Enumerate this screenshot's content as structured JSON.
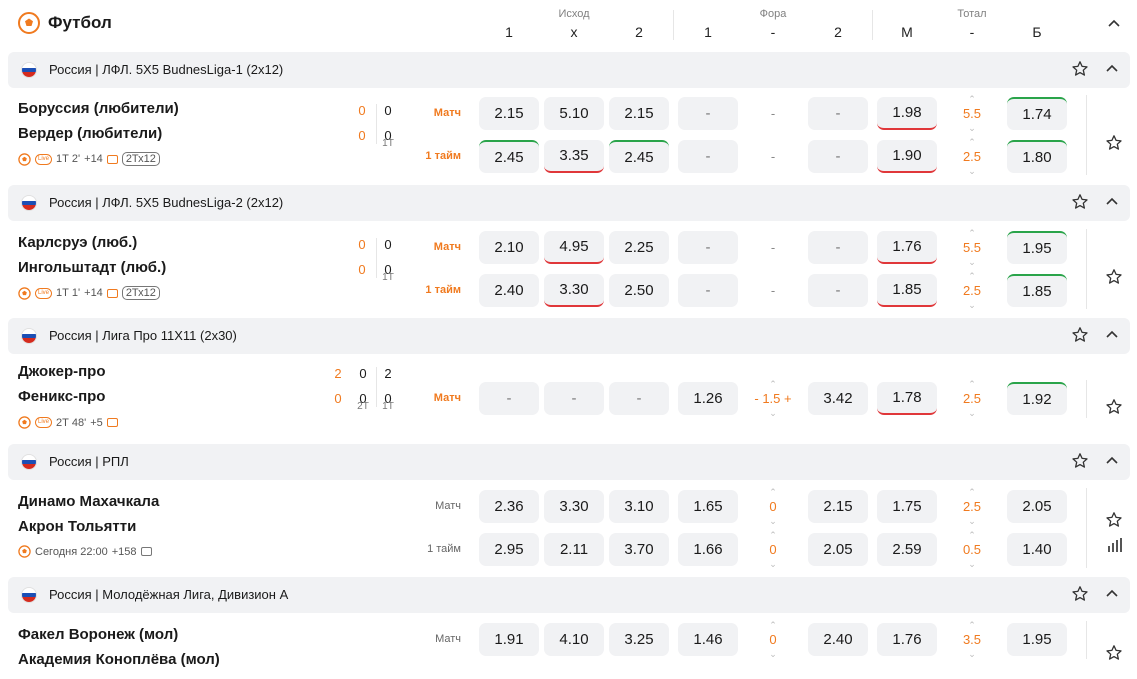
{
  "header": {
    "title": "Футбол",
    "groups": [
      "Исход",
      "Фора",
      "Тотал"
    ],
    "columns": [
      "1",
      "x",
      "2",
      "1",
      "-",
      "2",
      "М",
      "-",
      "Б"
    ]
  },
  "leagues": [
    {
      "name": "Россия | ЛФЛ. 5Х5 BudnesLiga-1 (2х12)",
      "match": {
        "team1": "Боруссия (любители)",
        "team2": "Вердер (любители)",
        "score1": [
          "0",
          "0"
        ],
        "score2": [
          "0",
          "0"
        ],
        "periods": [
          "1Т"
        ],
        "time": "1Т 2'",
        "more": "+14",
        "format": "2Тх12",
        "rows": [
          {
            "label": "Матч",
            "odds": [
              "2.15",
              "5.10",
              "2.15",
              "-",
              "-",
              "-",
              "1.98",
              "5.5",
              "1.74"
            ]
          },
          {
            "label": "1 тайм",
            "odds": [
              "2.45",
              "3.35",
              "2.45",
              "-",
              "-",
              "-",
              "1.90",
              "2.5",
              "1.80"
            ]
          }
        ]
      }
    },
    {
      "name": "Россия | ЛФЛ. 5Х5 BudnesLiga-2 (2х12)",
      "match": {
        "team1": "Карлсруэ (люб.)",
        "team2": "Ингольштадт (люб.)",
        "score1": [
          "0",
          "0"
        ],
        "score2": [
          "0",
          "0"
        ],
        "periods": [
          "1Т"
        ],
        "time": "1Т 1'",
        "more": "+14",
        "format": "2Тх12",
        "rows": [
          {
            "label": "Матч",
            "odds": [
              "2.10",
              "4.95",
              "2.25",
              "-",
              "-",
              "-",
              "1.76",
              "5.5",
              "1.95"
            ]
          },
          {
            "label": "1 тайм",
            "odds": [
              "2.40",
              "3.30",
              "2.50",
              "-",
              "-",
              "-",
              "1.85",
              "2.5",
              "1.85"
            ]
          }
        ]
      }
    },
    {
      "name": "Россия | Лига Про 11Х11 (2х30)",
      "match": {
        "team1": "Джокер-про",
        "team2": "Феникс-про",
        "score1": [
          "2",
          "0",
          "2"
        ],
        "score2": [
          "0",
          "0",
          "0"
        ],
        "periods": [
          "2Т",
          "1Т"
        ],
        "time": "2Т 48'",
        "more": "+5",
        "rows": [
          {
            "label": "Матч",
            "odds": [
              "-",
              "-",
              "-",
              "1.26",
              "- 1.5 +",
              "3.42",
              "1.78",
              "2.5",
              "1.92"
            ]
          }
        ]
      }
    },
    {
      "name": "Россия | РПЛ",
      "match": {
        "team1": "Динамо Махачкала",
        "team2": "Акрон Тольятти",
        "time": "Сегодня 22:00",
        "more": "+158",
        "rows": [
          {
            "label": "Матч",
            "odds": [
              "2.36",
              "3.30",
              "3.10",
              "1.65",
              "0",
              "2.15",
              "1.75",
              "2.5",
              "2.05"
            ]
          },
          {
            "label": "1 тайм",
            "odds": [
              "2.95",
              "2.11",
              "3.70",
              "1.66",
              "0",
              "2.05",
              "2.59",
              "0.5",
              "1.40"
            ]
          }
        ]
      }
    },
    {
      "name": "Россия | Молодёжная Лига, Дивизион А",
      "match": {
        "team1": "Факел Воронеж (мол)",
        "team2": "Академия Коноплёва (мол)",
        "rows": [
          {
            "label": "Матч",
            "odds": [
              "1.91",
              "4.10",
              "3.25",
              "1.46",
              "0",
              "2.40",
              "1.76",
              "3.5",
              "1.95"
            ]
          }
        ]
      }
    }
  ],
  "colors": {
    "accent": "#f07a1f",
    "up": "#2aa44a",
    "down": "#e0373a",
    "cell": "#f1f2f4"
  }
}
